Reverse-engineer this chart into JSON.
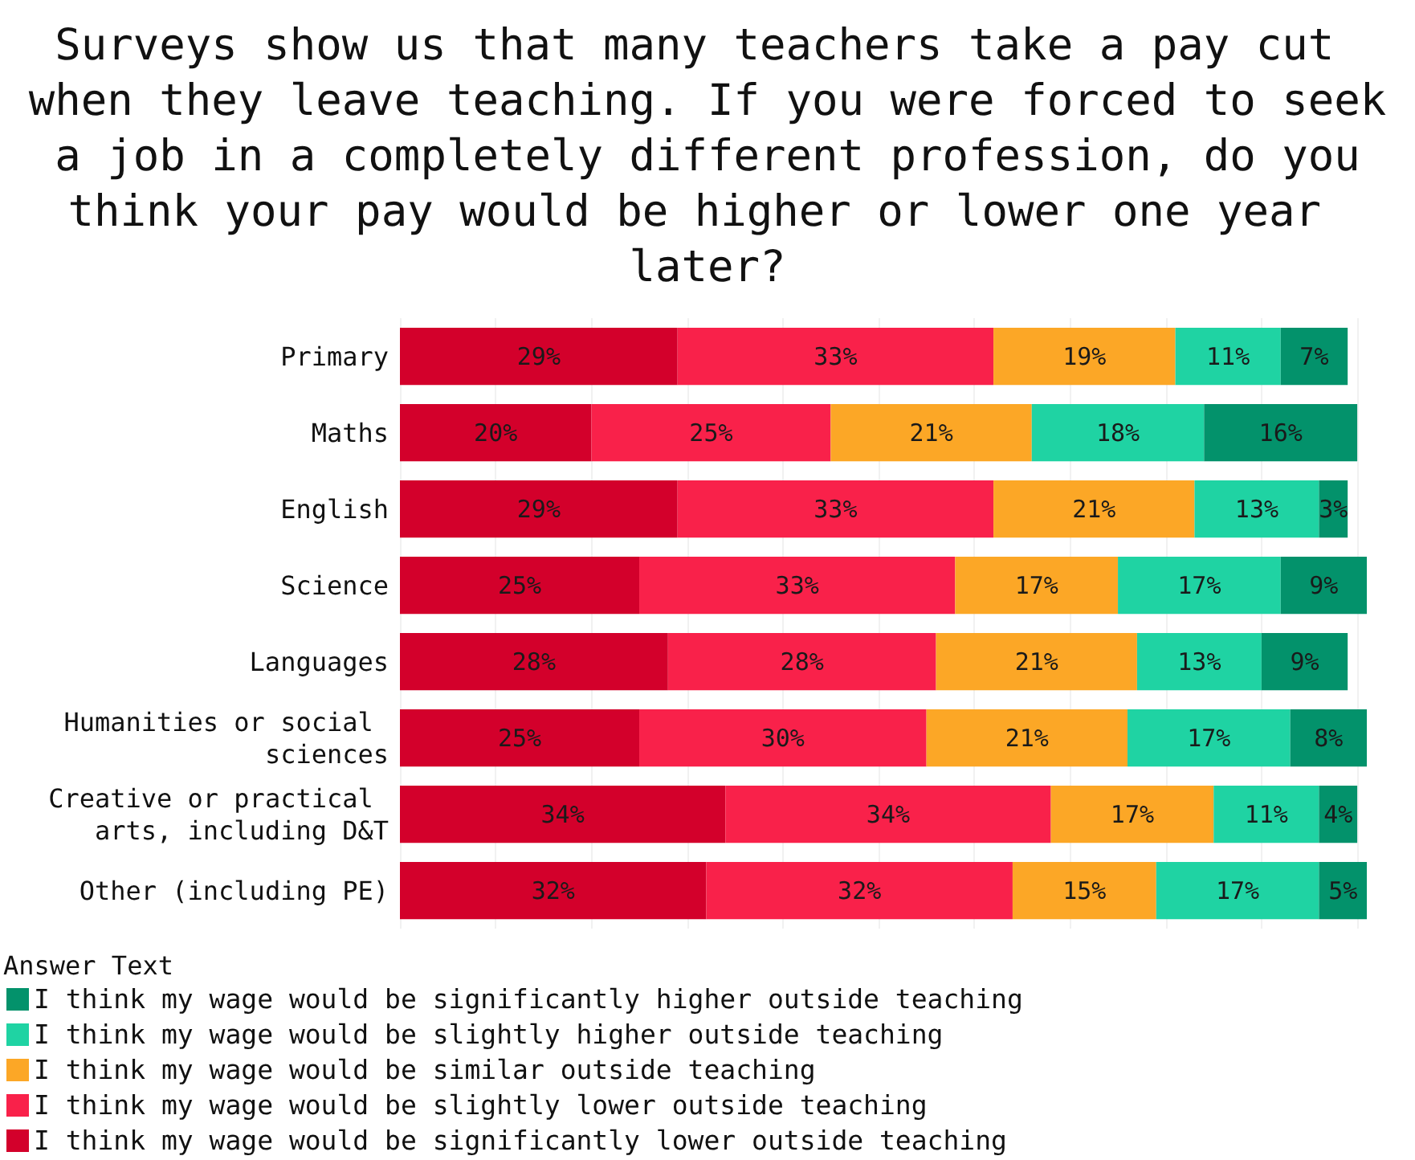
{
  "chart_data": {
    "type": "bar",
    "orientation": "horizontal",
    "stacked": true,
    "title": "Surveys show us that many teachers take a pay cut when they leave teaching. If you were forced to seek a job in a completely different profession, do you think your pay would be higher or lower one year later?",
    "legend_title": "Answer Text",
    "categories": [
      "Primary",
      "Maths",
      "English",
      "Science",
      "Languages",
      "Humanities or social sciences",
      "Creative or practical arts, including D&T",
      "Other (including PE)"
    ],
    "series": [
      {
        "name": "I think my wage would be significantly lower outside teaching",
        "color": "#d3002b",
        "values": [
          29,
          20,
          29,
          25,
          28,
          25,
          34,
          32
        ],
        "value_labels": [
          "29%",
          "20%",
          "29%",
          "25%",
          "28%",
          "25%",
          "34%",
          "32%"
        ]
      },
      {
        "name": "I think my wage would be slightly lower outside teaching",
        "color": "#f9214a",
        "values": [
          33,
          25,
          33,
          33,
          28,
          30,
          34,
          32
        ],
        "value_labels": [
          "33%",
          "25%",
          "33%",
          "33%",
          "28%",
          "30%",
          "34%",
          "32%"
        ]
      },
      {
        "name": "I think my wage would be similar outside teaching",
        "color": "#fca726",
        "values": [
          19,
          21,
          21,
          17,
          21,
          21,
          17,
          15
        ],
        "value_labels": [
          "19%",
          "21%",
          "21%",
          "17%",
          "21%",
          "21%",
          "17%",
          "15%"
        ]
      },
      {
        "name": "I think my wage would be slightly higher outside teaching",
        "color": "#1fd3a3",
        "values": [
          11,
          18,
          13,
          17,
          13,
          17,
          11,
          17
        ],
        "value_labels": [
          "11%",
          "18%",
          "13%",
          "17%",
          "13%",
          "17%",
          "11%",
          "17%"
        ]
      },
      {
        "name": "I think my wage would be significantly higher outside teaching",
        "color": "#03926b",
        "values": [
          7,
          16,
          3,
          9,
          9,
          8,
          4,
          5
        ],
        "value_labels": [
          "7%",
          "16%",
          "3%",
          "9%",
          "9%",
          "8%",
          "4%",
          "5%"
        ]
      }
    ],
    "xlim": [
      0,
      101
    ],
    "xticks": [
      {
        "value": 0,
        "label": null
      },
      {
        "value": 10,
        "label": null
      },
      {
        "value": 20,
        "label": null
      },
      {
        "value": 30,
        "label": null
      },
      {
        "value": 40,
        "label": null
      },
      {
        "value": 50,
        "label": null
      },
      {
        "value": 60,
        "label": null
      },
      {
        "value": 70,
        "label": null
      },
      {
        "value": 80,
        "label": null
      },
      {
        "value": 90,
        "label": null
      },
      {
        "value": 100,
        "label": null
      }
    ],
    "grid": "x",
    "legend": "bottom left",
    "tick_labels": "y"
  }
}
